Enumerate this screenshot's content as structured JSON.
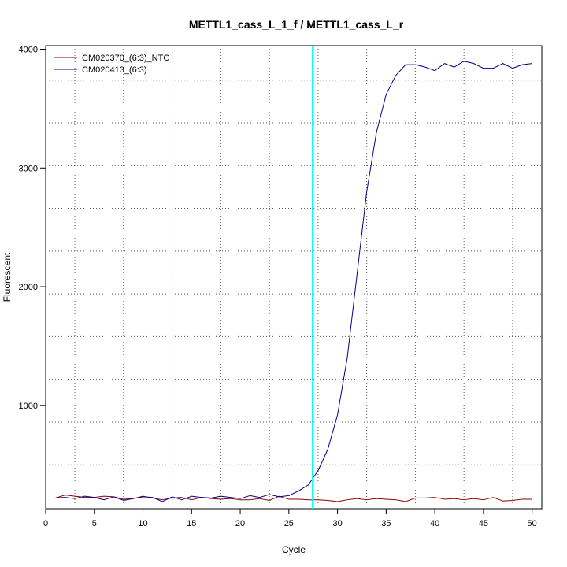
{
  "chart_data": {
    "type": "line",
    "title": "METTL1_cass_L_1_f / METTL1_cass_L_r",
    "xlabel": "Cycle",
    "ylabel": "Fluorescent",
    "xlim": [
      0,
      51
    ],
    "ylim": [
      130,
      4030
    ],
    "xticks": [
      0,
      5,
      10,
      15,
      20,
      25,
      30,
      35,
      40,
      45,
      50
    ],
    "yticks": [
      1000,
      2000,
      3000,
      4000
    ],
    "threshold_cycle": 27.4,
    "grid": true,
    "legend_position": "top-left",
    "colors": {
      "ntc": "#8b0000",
      "sample": "#00008b",
      "threshold": "#00ffff",
      "grid": "#555555"
    },
    "series": [
      {
        "name": "CM020370_(6:3)_NTC",
        "color": "#8b0000",
        "x": [
          1,
          2,
          3,
          4,
          5,
          6,
          7,
          8,
          9,
          10,
          11,
          12,
          13,
          14,
          15,
          16,
          17,
          18,
          19,
          20,
          21,
          22,
          23,
          24,
          25,
          26,
          27,
          28,
          29,
          30,
          31,
          32,
          33,
          34,
          35,
          36,
          37,
          38,
          39,
          40,
          41,
          42,
          43,
          44,
          45,
          46,
          47,
          48,
          49,
          50
        ],
        "values": [
          220,
          245,
          235,
          225,
          225,
          235,
          230,
          210,
          215,
          235,
          220,
          205,
          220,
          225,
          205,
          225,
          215,
          210,
          215,
          205,
          205,
          215,
          200,
          235,
          210,
          210,
          205,
          205,
          200,
          190,
          205,
          215,
          205,
          215,
          210,
          205,
          190,
          220,
          220,
          225,
          210,
          215,
          205,
          215,
          205,
          225,
          195,
          200,
          210,
          210
        ]
      },
      {
        "name": "CM020413_(6:3)",
        "color": "#00008b",
        "x": [
          1,
          2,
          3,
          4,
          5,
          6,
          7,
          8,
          9,
          10,
          11,
          12,
          13,
          14,
          15,
          16,
          17,
          18,
          19,
          20,
          21,
          22,
          23,
          24,
          25,
          26,
          27,
          28,
          29,
          30,
          31,
          32,
          33,
          34,
          35,
          36,
          37,
          38,
          39,
          40,
          41,
          42,
          43,
          44,
          45,
          46,
          47,
          48,
          49,
          50
        ],
        "values": [
          220,
          225,
          215,
          235,
          225,
          205,
          230,
          200,
          215,
          230,
          225,
          190,
          230,
          205,
          235,
          225,
          220,
          235,
          225,
          215,
          240,
          225,
          250,
          230,
          240,
          280,
          330,
          450,
          630,
          920,
          1400,
          2100,
          2800,
          3300,
          3620,
          3780,
          3870,
          3870,
          3850,
          3820,
          3880,
          3850,
          3900,
          3880,
          3840,
          3840,
          3880,
          3840,
          3870,
          3880
        ]
      }
    ]
  }
}
